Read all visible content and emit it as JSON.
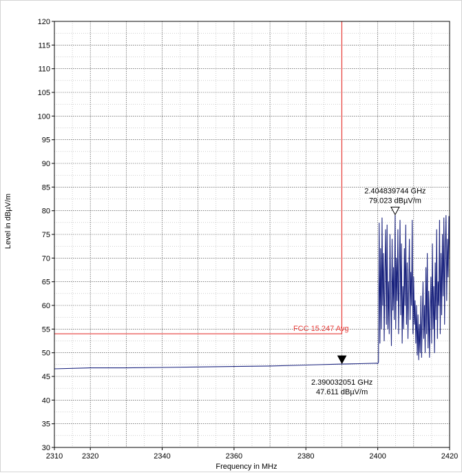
{
  "chart_data": {
    "type": "line",
    "title": "",
    "xlabel": "Frequency in MHz",
    "ylabel": "Level in dBµV/m",
    "xlim": [
      2310,
      2420
    ],
    "ylim": [
      30,
      120
    ],
    "x_ticks": [
      2310,
      2320,
      2340,
      2360,
      2380,
      2400,
      2420
    ],
    "y_ticks": [
      30,
      35,
      40,
      45,
      50,
      55,
      60,
      65,
      70,
      75,
      80,
      85,
      90,
      95,
      100,
      105,
      110,
      115,
      120
    ],
    "grid": true,
    "colors": {
      "trace": "#1a237e",
      "limit": "#e53935",
      "axis": "#000000",
      "grid": "#000000"
    },
    "series": [
      {
        "values": [
          [
            2310.0,
            46.6
          ],
          [
            2320.0,
            46.8
          ],
          [
            2330.0,
            46.8
          ],
          [
            2340.0,
            46.9
          ],
          [
            2350.0,
            47.0
          ],
          [
            2360.0,
            47.1
          ],
          [
            2370.0,
            47.2
          ],
          [
            2380.0,
            47.4
          ],
          [
            2390.0,
            47.6
          ],
          [
            2395.0,
            47.7
          ],
          [
            2399.9,
            47.8
          ],
          [
            2400.0,
            47.7
          ],
          [
            2400.2,
            48.0
          ],
          [
            2400.4,
            77.4
          ],
          [
            2400.6,
            52.0
          ],
          [
            2400.8,
            72.0
          ],
          [
            2401.0,
            55.0
          ],
          [
            2401.2,
            78.5
          ],
          [
            2401.4,
            60.0
          ],
          [
            2401.6,
            71.0
          ],
          [
            2401.8,
            52.5
          ],
          [
            2402.0,
            67.0
          ],
          [
            2402.2,
            76.0
          ],
          [
            2402.4,
            56.0
          ],
          [
            2402.6,
            77.0
          ],
          [
            2402.8,
            55.0
          ],
          [
            2403.0,
            65.0
          ],
          [
            2403.2,
            54.0
          ],
          [
            2403.4,
            75.0
          ],
          [
            2403.6,
            62.0
          ],
          [
            2403.8,
            51.5
          ],
          [
            2404.0,
            74.0
          ],
          [
            2404.2,
            59.0
          ],
          [
            2404.4,
            68.0
          ],
          [
            2404.6,
            57.0
          ],
          [
            2404.84,
            79.023
          ],
          [
            2405.0,
            55.0
          ],
          [
            2405.2,
            70.0
          ],
          [
            2405.4,
            61.0
          ],
          [
            2405.6,
            76.0
          ],
          [
            2405.8,
            54.0
          ],
          [
            2406.0,
            66.0
          ],
          [
            2406.2,
            78.0
          ],
          [
            2406.4,
            58.0
          ],
          [
            2406.6,
            73.0
          ],
          [
            2406.8,
            52.0
          ],
          [
            2407.0,
            64.0
          ],
          [
            2407.2,
            55.0
          ],
          [
            2407.4,
            72.0
          ],
          [
            2407.6,
            60.0
          ],
          [
            2407.8,
            77.0
          ],
          [
            2408.0,
            56.0
          ],
          [
            2408.2,
            69.0
          ],
          [
            2408.4,
            53.0
          ],
          [
            2408.6,
            63.0
          ],
          [
            2408.8,
            74.0
          ],
          [
            2409.0,
            57.0
          ],
          [
            2409.2,
            67.0
          ],
          [
            2409.4,
            60.0
          ],
          [
            2409.6,
            78.0
          ],
          [
            2409.8,
            54.0
          ],
          [
            2410.0,
            66.0
          ],
          [
            2410.2,
            56.0
          ],
          [
            2410.4,
            61.0
          ],
          [
            2410.6,
            52.0
          ],
          [
            2410.8,
            60.0
          ],
          [
            2411.0,
            49.5
          ],
          [
            2411.2,
            58.0
          ],
          [
            2411.4,
            48.5
          ],
          [
            2411.6,
            56.0
          ],
          [
            2411.8,
            50.0
          ],
          [
            2412.0,
            62.0
          ],
          [
            2412.2,
            49.0
          ],
          [
            2412.4,
            57.0
          ],
          [
            2412.6,
            65.0
          ],
          [
            2412.8,
            53.0
          ],
          [
            2413.0,
            60.0
          ],
          [
            2413.2,
            50.0
          ],
          [
            2413.4,
            68.0
          ],
          [
            2413.6,
            54.0
          ],
          [
            2413.8,
            71.0
          ],
          [
            2414.0,
            51.0
          ],
          [
            2414.2,
            63.0
          ],
          [
            2414.4,
            49.0
          ],
          [
            2414.6,
            58.0
          ],
          [
            2414.8,
            66.0
          ],
          [
            2415.0,
            52.0
          ],
          [
            2415.2,
            73.0
          ],
          [
            2415.4,
            55.0
          ],
          [
            2415.6,
            64.0
          ],
          [
            2415.8,
            50.0
          ],
          [
            2416.0,
            69.0
          ],
          [
            2416.2,
            57.0
          ],
          [
            2416.4,
            76.0
          ],
          [
            2416.6,
            53.0
          ],
          [
            2416.8,
            65.0
          ],
          [
            2417.0,
            60.0
          ],
          [
            2417.2,
            78.0
          ],
          [
            2417.4,
            54.0
          ],
          [
            2417.6,
            71.0
          ],
          [
            2417.8,
            58.0
          ],
          [
            2418.0,
            75.0
          ],
          [
            2418.2,
            62.0
          ],
          [
            2418.4,
            78.5
          ],
          [
            2418.6,
            56.0
          ],
          [
            2418.8,
            72.0
          ],
          [
            2419.0,
            79.0
          ],
          [
            2419.2,
            61.0
          ],
          [
            2419.4,
            74.0
          ],
          [
            2419.6,
            66.0
          ],
          [
            2419.8,
            78.8
          ],
          [
            2420.0,
            70.0
          ]
        ]
      }
    ],
    "limit_line": {
      "label": "FCC 15.247 Avg",
      "level": 54,
      "x_range": [
        2310,
        2390
      ],
      "vertical_x": 2390
    },
    "markers": [
      {
        "x": 2390.032,
        "y": 47.611,
        "freq_label": "2.390032051 GHz",
        "level_label": "47.611 dBµV/m",
        "filled": true,
        "label_side": "below"
      },
      {
        "x": 2404.8397,
        "y": 79.023,
        "freq_label": "2.404839744 GHz",
        "level_label": "79.023 dBµV/m",
        "filled": false,
        "label_side": "above"
      }
    ]
  }
}
